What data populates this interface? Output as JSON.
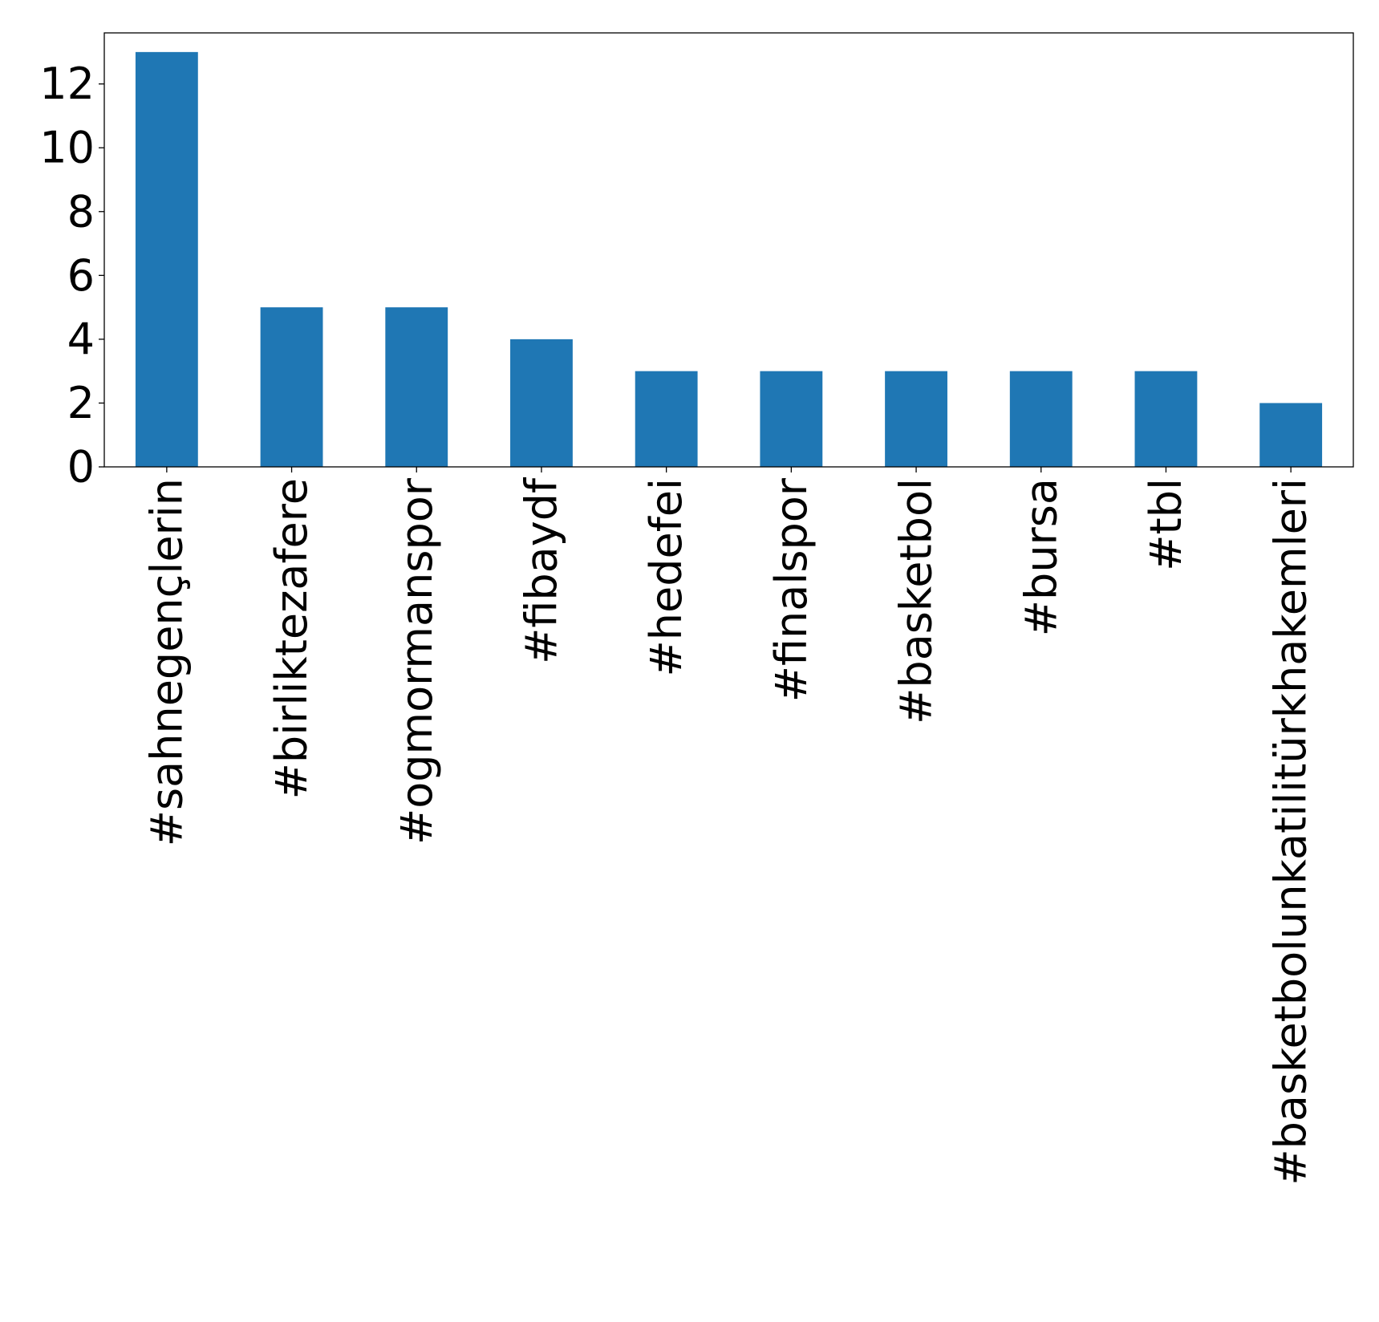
{
  "chart_data": {
    "type": "bar",
    "categories": [
      "#sahnegençlerin",
      "#birliktezafere",
      "#ogmormanspor",
      "#fibaydf",
      "#hedefei",
      "#finalspor",
      "#basketbol",
      "#bursa",
      "#tbl",
      "#basketbolunkatilitürkhakemleri"
    ],
    "values": [
      13,
      5,
      5,
      4,
      3,
      3,
      3,
      3,
      3,
      2
    ],
    "title": "",
    "xlabel": "",
    "ylabel": "",
    "ylim": [
      0,
      13.6
    ],
    "yticks": [
      0,
      2,
      4,
      6,
      8,
      10,
      12
    ],
    "grid": false,
    "bar_color": "#1f77b4"
  }
}
